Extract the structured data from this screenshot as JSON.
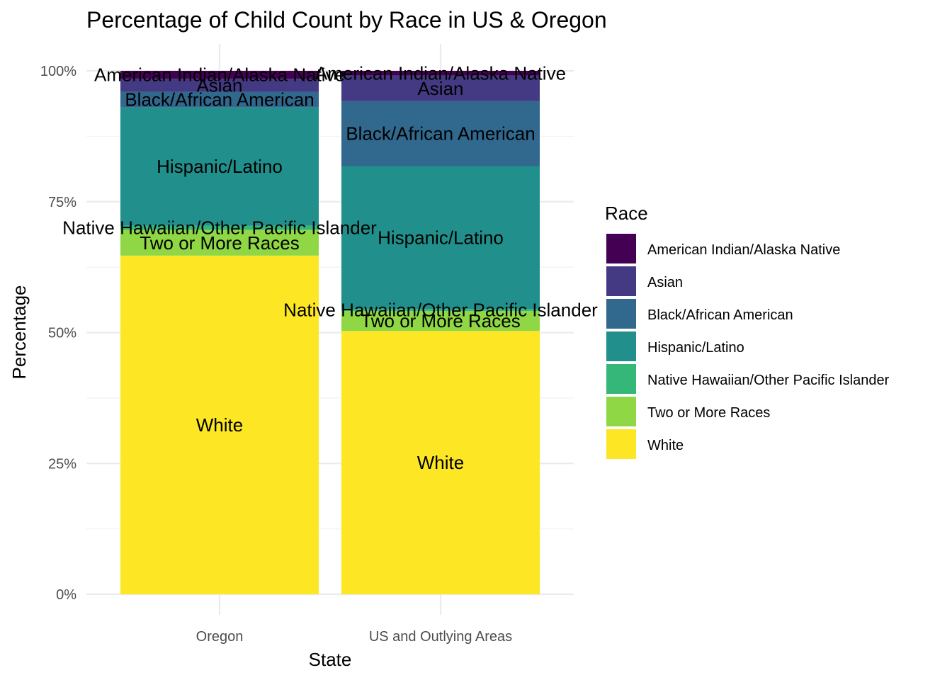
{
  "chart_data": {
    "type": "stacked-bar-percent",
    "title": "Percentage of Child Count by Race in US & Oregon",
    "xlabel": "State",
    "ylabel": "Percentage",
    "ylim": [
      0,
      100
    ],
    "y_ticks": [
      {
        "value": 0,
        "label": "0%"
      },
      {
        "value": 25,
        "label": "25%"
      },
      {
        "value": 50,
        "label": "50%"
      },
      {
        "value": 75,
        "label": "75%"
      },
      {
        "value": 100,
        "label": "100%"
      }
    ],
    "categories": [
      "Oregon",
      "US and Outlying Areas"
    ],
    "legend": {
      "title": "Race",
      "position": "right",
      "entries": [
        {
          "name": "American Indian/Alaska Native",
          "color": "#440154"
        },
        {
          "name": "Asian",
          "color": "#443A83"
        },
        {
          "name": "Black/African American",
          "color": "#31688E"
        },
        {
          "name": "Hispanic/Latino",
          "color": "#21908C"
        },
        {
          "name": "Native Hawaiian/Other Pacific Islander",
          "color": "#35B779"
        },
        {
          "name": "Two or More Races",
          "color": "#8FD744"
        },
        {
          "name": "White",
          "color": "#FDE725"
        }
      ]
    },
    "stack_order_bottom_to_top": [
      "White",
      "Two or More Races",
      "Native Hawaiian/Other Pacific Islander",
      "Hispanic/Latino",
      "Black/African American",
      "Asian",
      "American Indian/Alaska Native"
    ],
    "series": [
      {
        "name": "American Indian/Alaska Native",
        "values": [
          1.5,
          0.9
        ]
      },
      {
        "name": "Asian",
        "values": [
          2.5,
          4.9
        ]
      },
      {
        "name": "Black/African American",
        "values": [
          3.0,
          12.4
        ]
      },
      {
        "name": "Hispanic/Latino",
        "values": [
          22.6,
          27.3
        ]
      },
      {
        "name": "Native Hawaiian/Other Pacific Islander",
        "values": [
          0.8,
          0.4
        ]
      },
      {
        "name": "Two or More Races",
        "values": [
          4.9,
          3.8
        ]
      },
      {
        "name": "White",
        "values": [
          64.7,
          50.3
        ]
      }
    ]
  }
}
